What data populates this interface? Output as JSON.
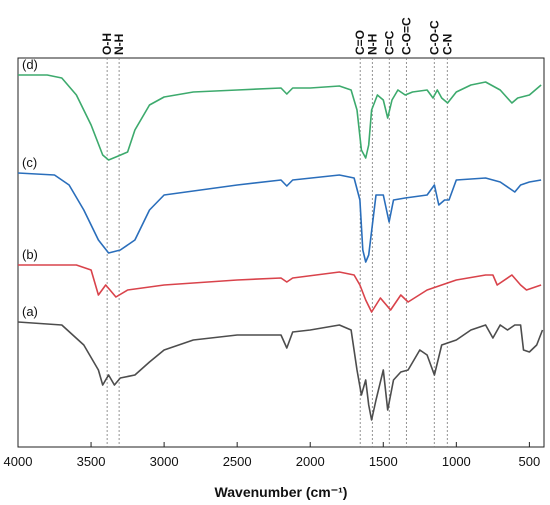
{
  "chart_data": {
    "type": "line",
    "xlabel": "Wavenumber (cm⁻¹)",
    "xlim": [
      4000,
      400
    ],
    "xticks": [
      4000,
      3500,
      3000,
      2500,
      2000,
      1500,
      1000,
      500
    ],
    "ylim": [
      0,
      389
    ],
    "markers": [
      {
        "label": "O-H",
        "x": 3390
      },
      {
        "label": "N-H",
        "x": 3308
      },
      {
        "label": "C=O",
        "x": 1658
      },
      {
        "label": "N-H",
        "x": 1575
      },
      {
        "label": "C=C",
        "x": 1459
      },
      {
        "label": "C-O=C",
        "x": 1342
      },
      {
        "label": "C-O-C",
        "x": 1151
      },
      {
        "label": "C-N",
        "x": 1062
      }
    ],
    "series": [
      {
        "name": "(d)",
        "color": "#3daa6d",
        "x": [
          4000,
          3800,
          3700,
          3600,
          3500,
          3420,
          3380,
          3330,
          3250,
          3200,
          3100,
          3000,
          2800,
          2500,
          2200,
          2160,
          2120,
          2000,
          1800,
          1720,
          1680,
          1650,
          1620,
          1600,
          1580,
          1540,
          1500,
          1470,
          1440,
          1400,
          1350,
          1300,
          1200,
          1160,
          1130,
          1100,
          1060,
          1000,
          900,
          800,
          700,
          620,
          580,
          500,
          420
        ],
        "values": [
          372,
          372,
          369,
          352,
          322,
          292,
          287,
          290,
          295,
          317,
          342,
          350,
          355,
          357,
          359,
          353,
          359,
          359,
          361,
          357,
          337,
          297,
          289,
          302,
          337,
          352,
          347,
          329,
          347,
          357,
          352,
          355,
          357,
          349,
          357,
          349,
          344,
          355,
          362,
          365,
          357,
          344,
          349,
          352,
          362
        ]
      },
      {
        "name": "(c)",
        "color": "#2a6ebb",
        "x": [
          4000,
          3750,
          3650,
          3550,
          3450,
          3380,
          3300,
          3200,
          3100,
          3000,
          2500,
          2200,
          2160,
          2120,
          1800,
          1700,
          1660,
          1640,
          1620,
          1600,
          1550,
          1500,
          1460,
          1430,
          1350,
          1200,
          1150,
          1120,
          1080,
          1050,
          1000,
          800,
          700,
          600,
          560,
          500,
          420
        ],
        "values": [
          274,
          272,
          262,
          237,
          207,
          194,
          197,
          207,
          237,
          252,
          262,
          267,
          261,
          267,
          272,
          269,
          247,
          197,
          185,
          192,
          252,
          252,
          225,
          247,
          249,
          252,
          262,
          242,
          247,
          247,
          267,
          269,
          265,
          255,
          262,
          265,
          267
        ]
      },
      {
        "name": "(b)",
        "color": "#d9434b",
        "x": [
          4000,
          3600,
          3500,
          3450,
          3400,
          3370,
          3330,
          3250,
          3000,
          2500,
          2200,
          2160,
          2120,
          1800,
          1700,
          1660,
          1620,
          1580,
          1520,
          1450,
          1380,
          1330,
          1200,
          1100,
          1000,
          800,
          750,
          720,
          620,
          560,
          520,
          420
        ],
        "values": [
          182,
          182,
          177,
          152,
          162,
          157,
          150,
          157,
          162,
          167,
          169,
          165,
          169,
          175,
          172,
          162,
          147,
          135,
          149,
          137,
          152,
          145,
          157,
          162,
          167,
          172,
          172,
          162,
          172,
          162,
          157,
          162
        ]
      },
      {
        "name": "(a)",
        "color": "#4d4d4d",
        "x": [
          4000,
          3700,
          3550,
          3450,
          3420,
          3380,
          3340,
          3300,
          3200,
          3100,
          3000,
          2800,
          2500,
          2200,
          2160,
          2120,
          2000,
          1800,
          1720,
          1680,
          1650,
          1620,
          1600,
          1580,
          1550,
          1500,
          1470,
          1430,
          1380,
          1330,
          1250,
          1200,
          1150,
          1100,
          1000,
          900,
          800,
          750,
          700,
          650,
          600,
          560,
          540,
          500,
          450,
          410
        ],
        "values": [
          125,
          122,
          102,
          77,
          62,
          72,
          62,
          69,
          72,
          85,
          97,
          107,
          112,
          112,
          99,
          115,
          117,
          122,
          117,
          77,
          52,
          67,
          42,
          27,
          47,
          77,
          37,
          67,
          75,
          77,
          97,
          92,
          72,
          102,
          107,
          117,
          122,
          109,
          122,
          117,
          122,
          122,
          97,
          95,
          102,
          117
        ]
      }
    ]
  }
}
